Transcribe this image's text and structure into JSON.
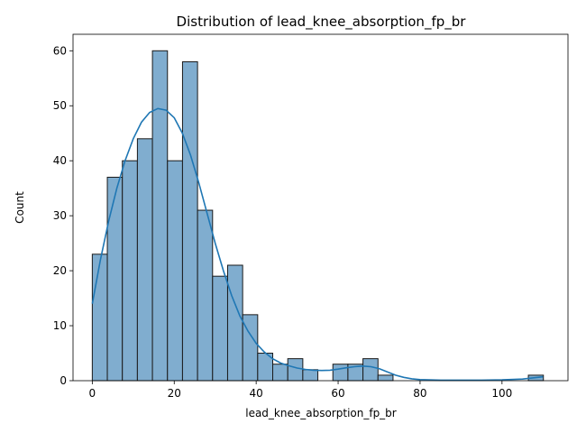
{
  "chart_data": {
    "type": "bar",
    "subtype": "histogram-with-kde",
    "title": "Distribution of lead_knee_absorption_fp_br",
    "xlabel": "lead_knee_absorption_fp_br",
    "ylabel": "Count",
    "xlim": [
      -4.7,
      116.1
    ],
    "ylim": [
      0,
      63
    ],
    "xticks": [
      0,
      20,
      40,
      60,
      80,
      100
    ],
    "yticks": [
      0,
      10,
      20,
      30,
      40,
      50,
      60
    ],
    "grid": false,
    "legend": "none",
    "bin_width": 3.67,
    "bins": [
      {
        "x0": 0.0,
        "count": 23
      },
      {
        "x0": 3.67,
        "count": 37
      },
      {
        "x0": 7.34,
        "count": 40
      },
      {
        "x0": 11.01,
        "count": 44
      },
      {
        "x0": 14.68,
        "count": 60
      },
      {
        "x0": 18.35,
        "count": 40
      },
      {
        "x0": 22.02,
        "count": 58
      },
      {
        "x0": 25.69,
        "count": 31
      },
      {
        "x0": 29.36,
        "count": 19
      },
      {
        "x0": 33.03,
        "count": 21
      },
      {
        "x0": 36.7,
        "count": 12
      },
      {
        "x0": 40.37,
        "count": 5
      },
      {
        "x0": 44.04,
        "count": 3
      },
      {
        "x0": 47.71,
        "count": 4
      },
      {
        "x0": 51.38,
        "count": 2
      },
      {
        "x0": 55.05,
        "count": 0
      },
      {
        "x0": 58.72,
        "count": 3
      },
      {
        "x0": 62.39,
        "count": 3
      },
      {
        "x0": 66.06,
        "count": 4
      },
      {
        "x0": 69.73,
        "count": 1
      },
      {
        "x0": 73.4,
        "count": 0
      },
      {
        "x0": 77.07,
        "count": 0
      },
      {
        "x0": 80.74,
        "count": 0
      },
      {
        "x0": 84.41,
        "count": 0
      },
      {
        "x0": 88.08,
        "count": 0
      },
      {
        "x0": 91.75,
        "count": 0
      },
      {
        "x0": 95.42,
        "count": 0
      },
      {
        "x0": 99.09,
        "count": 0
      },
      {
        "x0": 102.76,
        "count": 0
      },
      {
        "x0": 106.43,
        "count": 1
      }
    ],
    "kde": {
      "x": [
        0,
        2,
        4,
        6,
        8,
        10,
        12,
        14,
        16,
        18,
        20,
        22,
        24,
        26,
        28,
        30,
        32,
        34,
        36,
        38,
        40,
        42,
        44,
        46,
        48,
        50,
        52,
        54,
        56,
        58,
        60,
        62,
        64,
        66,
        68,
        70,
        72,
        74,
        76,
        78,
        80,
        85,
        90,
        95,
        100,
        105,
        110
      ],
      "y": [
        14,
        22,
        29,
        35,
        40,
        44,
        47,
        48.8,
        49.5,
        49.2,
        47.8,
        45,
        41,
        36,
        30.5,
        25,
        20,
        15.5,
        11.8,
        9,
        6.8,
        5.2,
        4,
        3.2,
        2.7,
        2.3,
        2.05,
        1.9,
        1.85,
        1.9,
        2.1,
        2.35,
        2.55,
        2.65,
        2.55,
        2.2,
        1.6,
        1.0,
        0.6,
        0.35,
        0.2,
        0.1,
        0.1,
        0.1,
        0.15,
        0.3,
        0.7
      ]
    },
    "colors": {
      "bar_fill": "#80adcf",
      "bar_edge": "#1a1a1a",
      "kde_line": "#1f77b4"
    }
  }
}
